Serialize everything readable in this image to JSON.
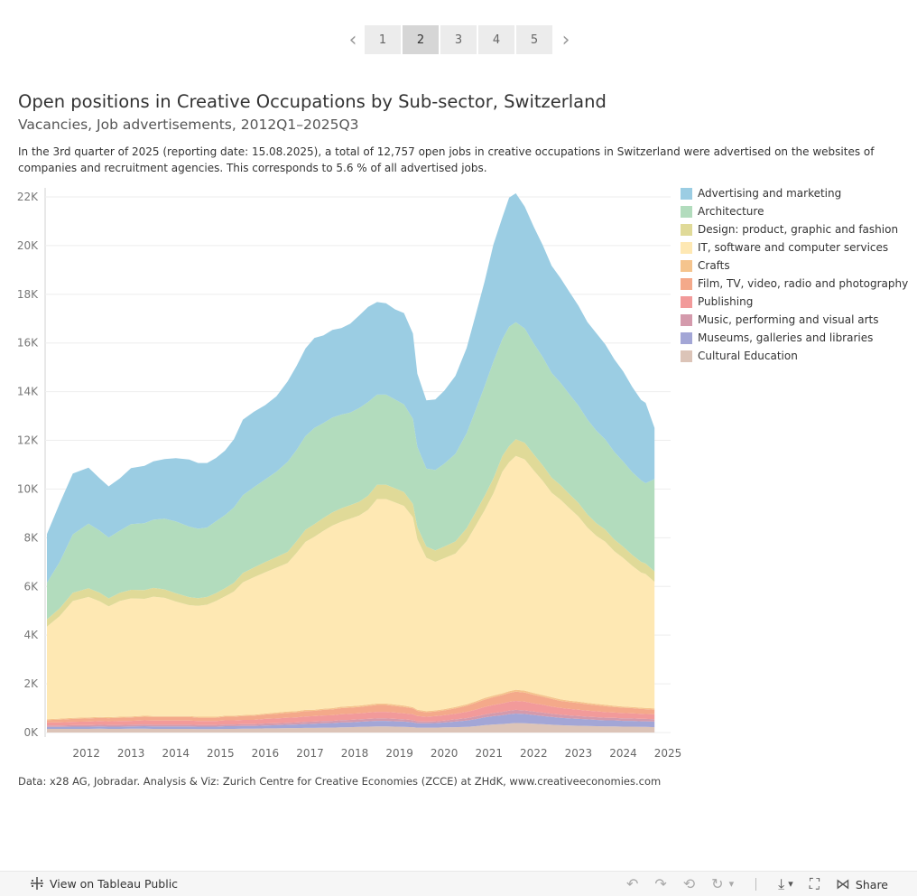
{
  "pager": {
    "prev": "‹",
    "next": "›",
    "pages": [
      "1",
      "2",
      "3",
      "4",
      "5"
    ],
    "active": "2"
  },
  "header": {
    "title": "Open positions in Creative Occupations by Sub-sector, Switzerland",
    "subtitle": "Vacancies, Job advertisements, 2012Q1–2025Q3",
    "description": "In the 3rd quarter of 2025 (reporting date: 15.08.2025), a total of 12,757 open jobs in creative occupations in Switzerland were advertised on the websites of companies and recruitment agencies. This corresponds to 5.6 % of all advertised jobs."
  },
  "chart_data": {
    "type": "area",
    "stacked": true,
    "x_start": 2011.6,
    "x_end": 2025.6,
    "ylim": [
      0,
      22500
    ],
    "yticks": [
      0,
      2000,
      4000,
      6000,
      8000,
      10000,
      12000,
      14000,
      16000,
      18000,
      20000,
      22000
    ],
    "ytick_labels": [
      "0K",
      "2K",
      "4K",
      "6K",
      "8K",
      "10K",
      "12K",
      "14K",
      "16K",
      "18K",
      "20K",
      "22K"
    ],
    "xtick_labels": [
      "2012",
      "2013",
      "2014",
      "2015",
      "2016",
      "2017",
      "2018",
      "2019",
      "2020",
      "2021",
      "2022",
      "2023",
      "2024",
      "2025"
    ],
    "grid": true,
    "legend_position": "right",
    "x": [
      2011.62,
      2011.9,
      2012.2,
      2012.55,
      2012.8,
      2013.0,
      2013.25,
      2013.5,
      2013.8,
      2014.0,
      2014.25,
      2014.5,
      2014.8,
      2015.0,
      2015.2,
      2015.4,
      2015.6,
      2015.8,
      2016.0,
      2016.25,
      2016.5,
      2016.75,
      2017.0,
      2017.2,
      2017.4,
      2017.6,
      2017.8,
      2018.0,
      2018.2,
      2018.4,
      2018.6,
      2018.8,
      2019.0,
      2019.2,
      2019.4,
      2019.6,
      2019.8,
      2019.9,
      2020.1,
      2020.3,
      2020.5,
      2020.75,
      2021.0,
      2021.2,
      2021.4,
      2021.6,
      2021.8,
      2021.95,
      2022.1,
      2022.3,
      2022.5,
      2022.7,
      2022.9,
      2023.1,
      2023.3,
      2023.5,
      2023.7,
      2023.9,
      2024.1,
      2024.3,
      2024.5,
      2024.7,
      2024.9,
      2025.0,
      2025.2
    ],
    "series": [
      {
        "name": "Cultural Education",
        "color": "#dcc4b8",
        "values": [
          150,
          150,
          150,
          150,
          160,
          150,
          150,
          160,
          160,
          150,
          150,
          150,
          150,
          140,
          140,
          140,
          150,
          150,
          160,
          160,
          170,
          170,
          180,
          180,
          190,
          190,
          200,
          200,
          210,
          220,
          230,
          240,
          250,
          250,
          240,
          230,
          220,
          200,
          200,
          200,
          210,
          220,
          230,
          260,
          300,
          330,
          350,
          370,
          390,
          380,
          360,
          340,
          320,
          300,
          290,
          280,
          270,
          260,
          250,
          250,
          240,
          240,
          230,
          230,
          220
        ]
      },
      {
        "name": "Museums, galleries and libraries",
        "color": "#a3a6d6",
        "values": [
          80,
          80,
          90,
          90,
          90,
          90,
          90,
          90,
          100,
          100,
          100,
          100,
          100,
          100,
          100,
          100,
          110,
          110,
          110,
          110,
          120,
          130,
          140,
          150,
          160,
          170,
          180,
          190,
          200,
          200,
          210,
          220,
          230,
          230,
          220,
          220,
          200,
          180,
          180,
          190,
          200,
          230,
          260,
          290,
          320,
          340,
          360,
          380,
          390,
          380,
          360,
          340,
          320,
          300,
          290,
          280,
          270,
          260,
          250,
          250,
          240,
          240,
          230,
          230,
          230
        ]
      },
      {
        "name": "Music, performing and visual arts",
        "color": "#d49aac",
        "values": [
          60,
          60,
          60,
          60,
          70,
          70,
          70,
          70,
          70,
          70,
          70,
          70,
          70,
          70,
          70,
          70,
          70,
          70,
          70,
          70,
          80,
          80,
          80,
          80,
          90,
          90,
          90,
          90,
          100,
          100,
          100,
          100,
          100,
          100,
          100,
          90,
          90,
          80,
          70,
          70,
          80,
          90,
          100,
          110,
          120,
          130,
          140,
          150,
          150,
          150,
          140,
          140,
          130,
          130,
          120,
          120,
          110,
          110,
          110,
          100,
          100,
          100,
          100,
          100,
          100
        ]
      },
      {
        "name": "Publishing",
        "color": "#f29a9a",
        "values": [
          120,
          130,
          140,
          150,
          150,
          150,
          160,
          160,
          170,
          170,
          170,
          170,
          170,
          160,
          160,
          160,
          170,
          170,
          180,
          180,
          190,
          200,
          210,
          210,
          220,
          220,
          230,
          230,
          240,
          250,
          250,
          260,
          270,
          270,
          260,
          250,
          240,
          220,
          200,
          210,
          220,
          230,
          260,
          280,
          310,
          330,
          350,
          360,
          370,
          360,
          340,
          320,
          300,
          280,
          270,
          260,
          250,
          240,
          230,
          220,
          220,
          210,
          210,
          200,
          200
        ]
      },
      {
        "name": "Film, TV, video, radio and photography",
        "color": "#f4a98a",
        "values": [
          100,
          110,
          120,
          130,
          130,
          130,
          140,
          140,
          150,
          150,
          150,
          150,
          150,
          140,
          140,
          140,
          150,
          150,
          160,
          170,
          180,
          190,
          200,
          210,
          220,
          220,
          230,
          240,
          250,
          250,
          260,
          270,
          280,
          280,
          270,
          260,
          240,
          210,
          180,
          190,
          200,
          220,
          250,
          280,
          300,
          320,
          340,
          360,
          380,
          370,
          350,
          330,
          310,
          290,
          280,
          270,
          260,
          250,
          240,
          230,
          220,
          210,
          200,
          200,
          190
        ]
      },
      {
        "name": "Crafts",
        "color": "#f5c48d",
        "values": [
          40,
          40,
          40,
          40,
          40,
          40,
          40,
          40,
          40,
          40,
          40,
          40,
          40,
          40,
          40,
          40,
          40,
          40,
          40,
          40,
          40,
          50,
          50,
          50,
          50,
          50,
          50,
          50,
          60,
          60,
          60,
          60,
          60,
          60,
          60,
          60,
          50,
          50,
          50,
          50,
          50,
          60,
          60,
          60,
          70,
          70,
          70,
          80,
          80,
          80,
          70,
          70,
          70,
          60,
          60,
          60,
          60,
          60,
          60,
          50,
          50,
          50,
          50,
          50,
          50
        ]
      },
      {
        "name": "IT, software and computer services",
        "color": "#fee8b3",
        "values": [
          3800,
          4200,
          4800,
          4950,
          4750,
          4550,
          4750,
          4850,
          4800,
          4900,
          4850,
          4700,
          4550,
          4550,
          4600,
          4750,
          4900,
          5100,
          5450,
          5650,
          5800,
          5950,
          6100,
          6500,
          6900,
          7100,
          7300,
          7500,
          7600,
          7700,
          7800,
          8000,
          8400,
          8400,
          8300,
          8200,
          7800,
          7000,
          6300,
          6100,
          6200,
          6300,
          6700,
          7200,
          7700,
          8300,
          9100,
          9400,
          9600,
          9500,
          9150,
          8800,
          8400,
          8200,
          7900,
          7600,
          7200,
          6900,
          6700,
          6350,
          6100,
          5800,
          5550,
          5500,
          5200
        ]
      },
      {
        "name": "Design: product, graphic and fashion",
        "color": "#e0da98",
        "values": [
          300,
          320,
          340,
          360,
          350,
          330,
          340,
          350,
          360,
          360,
          350,
          340,
          330,
          320,
          320,
          330,
          340,
          360,
          380,
          400,
          420,
          440,
          460,
          480,
          500,
          520,
          530,
          540,
          550,
          560,
          570,
          580,
          590,
          590,
          580,
          570,
          550,
          500,
          460,
          470,
          480,
          500,
          530,
          560,
          590,
          620,
          650,
          670,
          690,
          680,
          660,
          640,
          620,
          600,
          580,
          560,
          540,
          520,
          500,
          480,
          460,
          450,
          440,
          430,
          420
        ]
      },
      {
        "name": "Architecture",
        "color": "#b2dcbd",
        "values": [
          1500,
          1900,
          2400,
          2650,
          2550,
          2500,
          2550,
          2700,
          2750,
          2800,
          2900,
          2950,
          2900,
          2850,
          2850,
          2950,
          3000,
          3100,
          3200,
          3300,
          3400,
          3500,
          3700,
          3750,
          3850,
          3950,
          3900,
          3900,
          3850,
          3800,
          3850,
          3850,
          3700,
          3700,
          3650,
          3600,
          3500,
          3300,
          3200,
          3300,
          3400,
          3600,
          3900,
          4200,
          4500,
          4800,
          4800,
          4900,
          4800,
          4700,
          4550,
          4450,
          4300,
          4200,
          4100,
          4000,
          3900,
          3800,
          3700,
          3600,
          3500,
          3400,
          3350,
          3300,
          3800
        ]
      },
      {
        "name": "Advertising and marketing",
        "color": "#9bcde3",
        "values": [
          2000,
          2400,
          2500,
          2300,
          2150,
          2100,
          2150,
          2300,
          2350,
          2400,
          2450,
          2600,
          2750,
          2700,
          2650,
          2600,
          2650,
          2800,
          3100,
          3100,
          3050,
          3100,
          3300,
          3450,
          3600,
          3700,
          3600,
          3600,
          3550,
          3650,
          3800,
          3900,
          3800,
          3750,
          3700,
          3750,
          3500,
          3000,
          2800,
          2900,
          3000,
          3200,
          3500,
          3900,
          4300,
          4800,
          5000,
          5300,
          5300,
          5000,
          4800,
          4600,
          4400,
          4300,
          4200,
          4100,
          4000,
          4000,
          3900,
          3800,
          3700,
          3500,
          3300,
          3300,
          2100
        ]
      }
    ]
  },
  "source": "Data: x28 AG, Jobradar. Analysis & Viz: Zurich Centre for Creative Economies (ZCCE) at ZHdK, www.creativeeconomies.com",
  "toolbar": {
    "view_label": "View on Tableau Public",
    "share_label": "Share",
    "icons": {
      "undo": "↶",
      "redo": "↷",
      "revert": "⟲",
      "refresh": "↻",
      "dropdown": "▾",
      "download": "⤓",
      "fullscreen": "⛶",
      "share": "⋈"
    }
  }
}
